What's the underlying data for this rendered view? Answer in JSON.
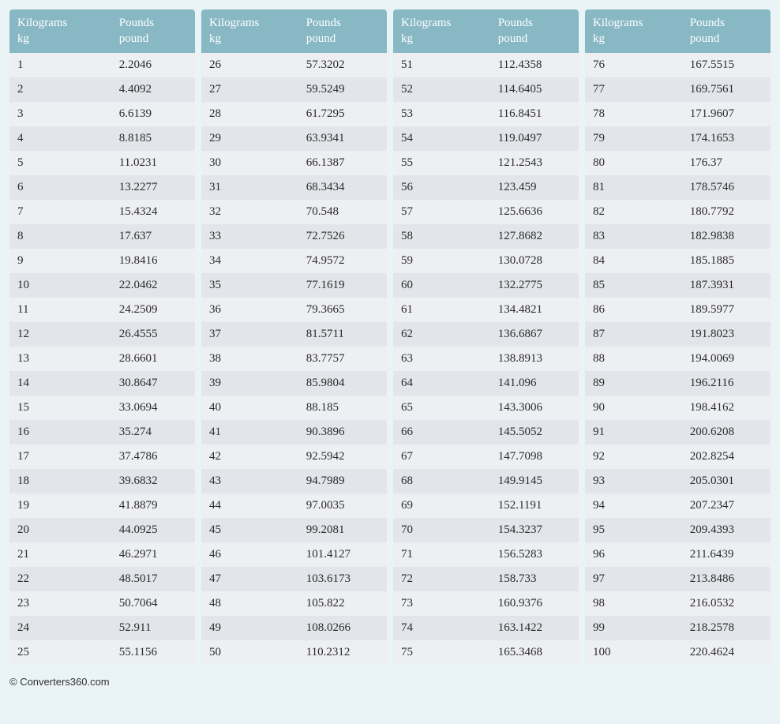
{
  "header": {
    "col1_line1": "Kilograms",
    "col1_line2": "kg",
    "col2_line1": "Pounds",
    "col2_line2": "pound"
  },
  "colors": {
    "page_background": "#eaf3f5",
    "header_background": "#87b8c4",
    "header_text": "#ffffff",
    "row_odd": "#eeeff2",
    "row_even": "#e3e5ea",
    "cell_text": "#2a2a2a"
  },
  "layout": {
    "columns": 4,
    "rows_per_column": 25,
    "font_family": "Georgia serif",
    "header_fontsize": 15,
    "cell_fontsize": 15
  },
  "tables": [
    [
      {
        "kg": "1",
        "lb": "2.2046"
      },
      {
        "kg": "2",
        "lb": "4.4092"
      },
      {
        "kg": "3",
        "lb": "6.6139"
      },
      {
        "kg": "4",
        "lb": "8.8185"
      },
      {
        "kg": "5",
        "lb": "11.0231"
      },
      {
        "kg": "6",
        "lb": "13.2277"
      },
      {
        "kg": "7",
        "lb": "15.4324"
      },
      {
        "kg": "8",
        "lb": "17.637"
      },
      {
        "kg": "9",
        "lb": "19.8416"
      },
      {
        "kg": "10",
        "lb": "22.0462"
      },
      {
        "kg": "11",
        "lb": "24.2509"
      },
      {
        "kg": "12",
        "lb": "26.4555"
      },
      {
        "kg": "13",
        "lb": "28.6601"
      },
      {
        "kg": "14",
        "lb": "30.8647"
      },
      {
        "kg": "15",
        "lb": "33.0694"
      },
      {
        "kg": "16",
        "lb": "35.274"
      },
      {
        "kg": "17",
        "lb": "37.4786"
      },
      {
        "kg": "18",
        "lb": "39.6832"
      },
      {
        "kg": "19",
        "lb": "41.8879"
      },
      {
        "kg": "20",
        "lb": "44.0925"
      },
      {
        "kg": "21",
        "lb": "46.2971"
      },
      {
        "kg": "22",
        "lb": "48.5017"
      },
      {
        "kg": "23",
        "lb": "50.7064"
      },
      {
        "kg": "24",
        "lb": "52.911"
      },
      {
        "kg": "25",
        "lb": "55.1156"
      }
    ],
    [
      {
        "kg": "26",
        "lb": "57.3202"
      },
      {
        "kg": "27",
        "lb": "59.5249"
      },
      {
        "kg": "28",
        "lb": "61.7295"
      },
      {
        "kg": "29",
        "lb": "63.9341"
      },
      {
        "kg": "30",
        "lb": "66.1387"
      },
      {
        "kg": "31",
        "lb": "68.3434"
      },
      {
        "kg": "32",
        "lb": "70.548"
      },
      {
        "kg": "33",
        "lb": "72.7526"
      },
      {
        "kg": "34",
        "lb": "74.9572"
      },
      {
        "kg": "35",
        "lb": "77.1619"
      },
      {
        "kg": "36",
        "lb": "79.3665"
      },
      {
        "kg": "37",
        "lb": "81.5711"
      },
      {
        "kg": "38",
        "lb": "83.7757"
      },
      {
        "kg": "39",
        "lb": "85.9804"
      },
      {
        "kg": "40",
        "lb": "88.185"
      },
      {
        "kg": "41",
        "lb": "90.3896"
      },
      {
        "kg": "42",
        "lb": "92.5942"
      },
      {
        "kg": "43",
        "lb": "94.7989"
      },
      {
        "kg": "44",
        "lb": "97.0035"
      },
      {
        "kg": "45",
        "lb": "99.2081"
      },
      {
        "kg": "46",
        "lb": "101.4127"
      },
      {
        "kg": "47",
        "lb": "103.6173"
      },
      {
        "kg": "48",
        "lb": "105.822"
      },
      {
        "kg": "49",
        "lb": "108.0266"
      },
      {
        "kg": "50",
        "lb": "110.2312"
      }
    ],
    [
      {
        "kg": "51",
        "lb": "112.4358"
      },
      {
        "kg": "52",
        "lb": "114.6405"
      },
      {
        "kg": "53",
        "lb": "116.8451"
      },
      {
        "kg": "54",
        "lb": "119.0497"
      },
      {
        "kg": "55",
        "lb": "121.2543"
      },
      {
        "kg": "56",
        "lb": "123.459"
      },
      {
        "kg": "57",
        "lb": "125.6636"
      },
      {
        "kg": "58",
        "lb": "127.8682"
      },
      {
        "kg": "59",
        "lb": "130.0728"
      },
      {
        "kg": "60",
        "lb": "132.2775"
      },
      {
        "kg": "61",
        "lb": "134.4821"
      },
      {
        "kg": "62",
        "lb": "136.6867"
      },
      {
        "kg": "63",
        "lb": "138.8913"
      },
      {
        "kg": "64",
        "lb": "141.096"
      },
      {
        "kg": "65",
        "lb": "143.3006"
      },
      {
        "kg": "66",
        "lb": "145.5052"
      },
      {
        "kg": "67",
        "lb": "147.7098"
      },
      {
        "kg": "68",
        "lb": "149.9145"
      },
      {
        "kg": "69",
        "lb": "152.1191"
      },
      {
        "kg": "70",
        "lb": "154.3237"
      },
      {
        "kg": "71",
        "lb": "156.5283"
      },
      {
        "kg": "72",
        "lb": "158.733"
      },
      {
        "kg": "73",
        "lb": "160.9376"
      },
      {
        "kg": "74",
        "lb": "163.1422"
      },
      {
        "kg": "75",
        "lb": "165.3468"
      }
    ],
    [
      {
        "kg": "76",
        "lb": "167.5515"
      },
      {
        "kg": "77",
        "lb": "169.7561"
      },
      {
        "kg": "78",
        "lb": "171.9607"
      },
      {
        "kg": "79",
        "lb": "174.1653"
      },
      {
        "kg": "80",
        "lb": "176.37"
      },
      {
        "kg": "81",
        "lb": "178.5746"
      },
      {
        "kg": "82",
        "lb": "180.7792"
      },
      {
        "kg": "83",
        "lb": "182.9838"
      },
      {
        "kg": "84",
        "lb": "185.1885"
      },
      {
        "kg": "85",
        "lb": "187.3931"
      },
      {
        "kg": "86",
        "lb": "189.5977"
      },
      {
        "kg": "87",
        "lb": "191.8023"
      },
      {
        "kg": "88",
        "lb": "194.0069"
      },
      {
        "kg": "89",
        "lb": "196.2116"
      },
      {
        "kg": "90",
        "lb": "198.4162"
      },
      {
        "kg": "91",
        "lb": "200.6208"
      },
      {
        "kg": "92",
        "lb": "202.8254"
      },
      {
        "kg": "93",
        "lb": "205.0301"
      },
      {
        "kg": "94",
        "lb": "207.2347"
      },
      {
        "kg": "95",
        "lb": "209.4393"
      },
      {
        "kg": "96",
        "lb": "211.6439"
      },
      {
        "kg": "97",
        "lb": "213.8486"
      },
      {
        "kg": "98",
        "lb": "216.0532"
      },
      {
        "kg": "99",
        "lb": "218.2578"
      },
      {
        "kg": "100",
        "lb": "220.4624"
      }
    ]
  ],
  "footer": {
    "copyright": "© Converters360.com"
  }
}
